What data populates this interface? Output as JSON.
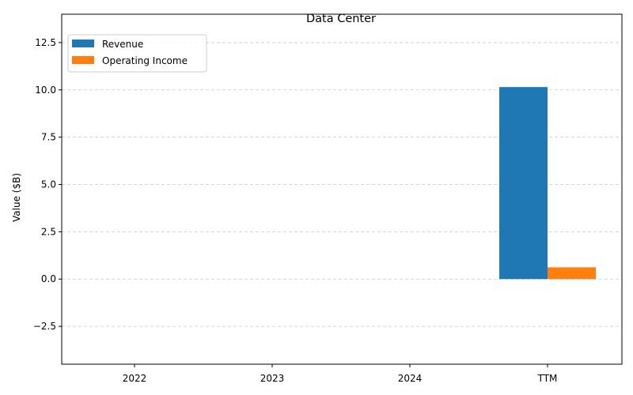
{
  "chart_data": {
    "type": "bar",
    "title": "Data Center",
    "xlabel": "",
    "ylabel": "Value ($B)",
    "categories": [
      "2022",
      "2023",
      "2024",
      "TTM"
    ],
    "series": [
      {
        "name": "Revenue",
        "color": "#1f77b4",
        "values": [
          null,
          null,
          null,
          10.15
        ]
      },
      {
        "name": "Operating Income",
        "color": "#ff7f0e",
        "values": [
          null,
          null,
          null,
          0.62
        ]
      }
    ],
    "ylim": [
      -4.5,
      14.0
    ],
    "yticks": [
      -2.5,
      0.0,
      2.5,
      5.0,
      7.5,
      10.0,
      12.5
    ],
    "ytick_labels": [
      "−2.5",
      "0.0",
      "2.5",
      "5.0",
      "7.5",
      "10.0",
      "12.5"
    ],
    "grid": "y-dashed",
    "legend": "top-left"
  }
}
